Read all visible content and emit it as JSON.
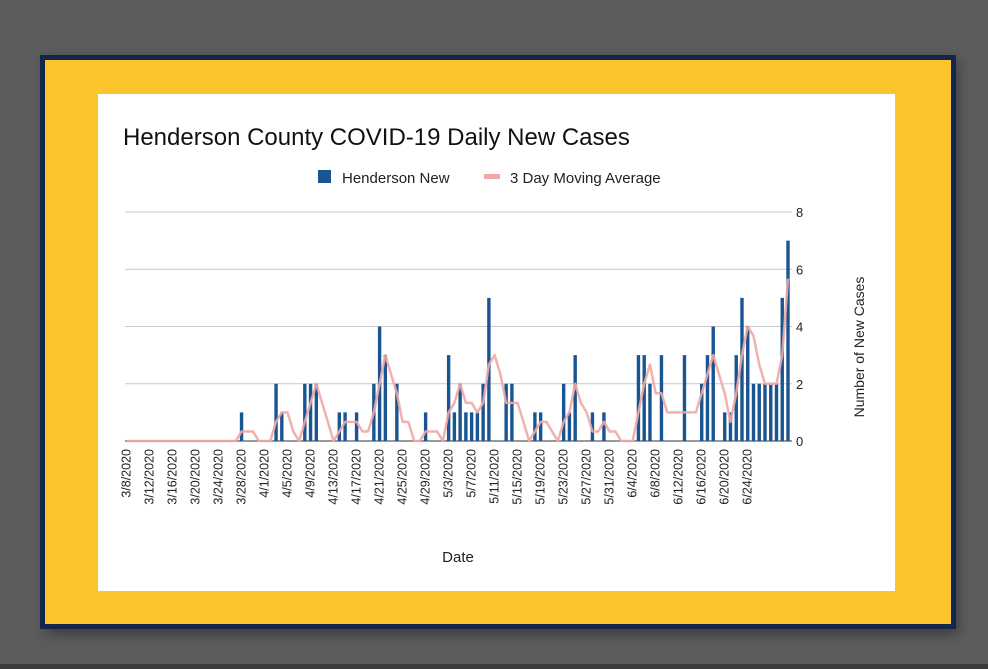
{
  "colors": {
    "background": "#5c5c5e",
    "frame_border": "#13264d",
    "frame_fill": "#fdc52c",
    "bar": "#1a5592",
    "moving_average": "#efa8a6",
    "grid": "#c8c8c8"
  },
  "chart_data": {
    "type": "bar",
    "title": "Henderson County COVID-19 Daily New Cases",
    "xlabel": "Date",
    "ylabel": "Number of New Cases",
    "ylim": [
      0,
      8
    ],
    "yticks": [
      0,
      2,
      4,
      6,
      8
    ],
    "y_axis_side": "right",
    "legend_position": "top",
    "grid": true,
    "x_start": "3/8/2020",
    "x_tick_labels": [
      "3/8/2020",
      "3/12/2020",
      "3/16/2020",
      "3/20/2020",
      "3/24/2020",
      "3/28/2020",
      "4/1/2020",
      "4/5/2020",
      "4/9/2020",
      "4/13/2020",
      "4/17/2020",
      "4/21/2020",
      "4/25/2020",
      "4/29/2020",
      "5/3/2020",
      "5/7/2020",
      "5/11/2020",
      "5/15/2020",
      "5/19/2020",
      "5/23/2020",
      "5/27/2020",
      "5/31/2020",
      "6/4/2020",
      "6/8/2020",
      "6/12/2020",
      "6/16/2020",
      "6/20/2020",
      "6/24/2020"
    ],
    "series": [
      {
        "name": "Henderson New",
        "kind": "bar",
        "values": [
          0,
          0,
          0,
          0,
          0,
          0,
          0,
          0,
          0,
          0,
          0,
          0,
          0,
          0,
          0,
          0,
          0,
          0,
          0,
          0,
          1,
          0,
          0,
          0,
          0,
          0,
          2,
          1,
          0,
          0,
          0,
          2,
          2,
          2,
          0,
          0,
          0,
          1,
          1,
          0,
          1,
          0,
          0,
          2,
          4,
          3,
          0,
          2,
          0,
          0,
          0,
          0,
          1,
          0,
          0,
          0,
          3,
          1,
          2,
          1,
          1,
          1,
          2,
          5,
          0,
          0,
          2,
          2,
          0,
          0,
          0,
          1,
          1,
          0,
          0,
          0,
          2,
          1,
          3,
          0,
          0,
          1,
          0,
          1,
          0,
          0,
          0,
          0,
          0,
          3,
          3,
          2,
          0,
          3,
          0,
          0,
          0,
          3,
          0,
          0,
          2,
          3,
          4,
          0,
          1,
          1,
          3,
          5,
          4,
          2,
          2,
          2,
          2,
          2,
          5,
          7
        ]
      },
      {
        "name": "3 Day Moving Average",
        "kind": "line",
        "values": [
          0,
          0,
          0,
          0,
          0,
          0,
          0,
          0,
          0,
          0,
          0,
          0,
          0,
          0,
          0,
          0,
          0,
          0,
          0,
          0,
          0.33,
          0.33,
          0.33,
          0,
          0,
          0,
          0.67,
          1,
          1,
          0.33,
          0,
          0.67,
          1.33,
          2,
          1.33,
          0.67,
          0,
          0.33,
          0.67,
          0.67,
          0.67,
          0.33,
          0.33,
          1,
          2,
          3,
          2.33,
          1.67,
          0.67,
          0.67,
          0,
          0,
          0.33,
          0.33,
          0.33,
          0,
          1,
          1.33,
          2,
          1.33,
          1.33,
          1,
          1.33,
          2.67,
          3,
          2.33,
          1.33,
          1.33,
          1.33,
          0.67,
          0,
          0.33,
          0.67,
          0.67,
          0.33,
          0,
          0.67,
          1,
          2,
          1.33,
          1,
          0.33,
          0.33,
          0.67,
          0.33,
          0.33,
          0,
          0,
          0,
          1,
          2,
          2.67,
          1.67,
          1.67,
          1,
          1,
          1,
          1,
          1,
          1,
          1.67,
          2.33,
          3,
          2.33,
          1.67,
          0.67,
          1.67,
          3,
          4,
          3.67,
          2.67,
          2,
          2,
          2,
          3,
          5.67
        ]
      }
    ]
  }
}
